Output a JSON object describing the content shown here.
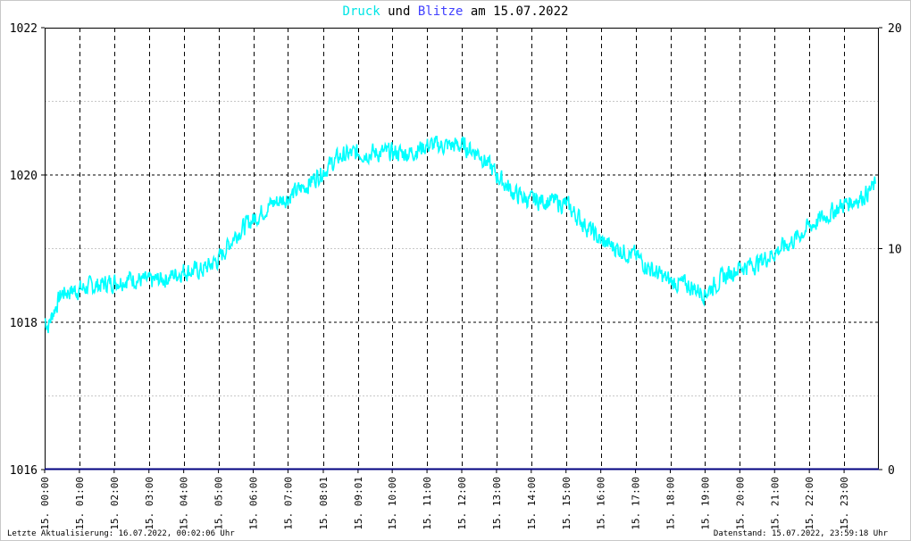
{
  "title": {
    "druck": "Druck",
    "und": "und",
    "blitze": "Blitze",
    "am": "am",
    "date": "15.07.2022"
  },
  "footer": {
    "left": "Letzte Aktualisierung: 16.07.2022, 00:02:06 Uhr",
    "right": "Datenstand: 15.07.2022, 23:59:18 Uhr"
  },
  "colors": {
    "pressure": "#00ffff",
    "lightning": "#000080",
    "grid": "#000000",
    "minor_grid": "#c8c8c8"
  },
  "chart_data": {
    "type": "line",
    "x_range_hours": [
      0,
      24
    ],
    "x_tick_labels": [
      "15. 00:00",
      "15. 01:00",
      "15. 02:00",
      "15. 03:00",
      "15. 04:00",
      "15. 05:00",
      "15. 06:00",
      "15. 07:00",
      "15. 08:01",
      "15. 09:01",
      "15. 10:00",
      "15. 11:00",
      "15. 12:00",
      "15. 13:00",
      "15. 14:00",
      "15. 15:00",
      "15. 16:00",
      "15. 17:00",
      "15. 18:00",
      "15. 19:00",
      "15. 20:00",
      "15. 21:00",
      "15. 22:00",
      "15. 23:00"
    ],
    "x_tick_hours": [
      0,
      1,
      2,
      3,
      4,
      5,
      6,
      7,
      8.0167,
      9.0167,
      10,
      11,
      12,
      13,
      14,
      15,
      16,
      17,
      18,
      19,
      20,
      21,
      22,
      23
    ],
    "y_left_range": [
      1016,
      1022
    ],
    "y_left_ticks": [
      "1016",
      "1018",
      "1020",
      "1022"
    ],
    "y_right_range": [
      0,
      20
    ],
    "y_right_ticks": [
      "0",
      "10",
      "20"
    ],
    "series": [
      {
        "name": "Druck",
        "axis": "left",
        "x_hours": [
          0,
          0.1,
          0.3,
          0.5,
          1,
          1.5,
          2,
          2.5,
          3,
          3.5,
          4,
          4.5,
          5,
          5.5,
          6,
          6.5,
          7,
          7.5,
          8,
          8.5,
          9,
          9.5,
          10,
          10.5,
          11,
          11.5,
          12,
          12.5,
          13,
          13.5,
          14,
          14.5,
          15,
          15.5,
          16,
          16.5,
          17,
          17.5,
          18,
          18.5,
          19,
          19.5,
          20,
          20.5,
          21,
          21.5,
          22,
          22.5,
          23,
          23.5,
          23.9
        ],
        "values": [
          1018.05,
          1017.95,
          1018.2,
          1018.4,
          1018.45,
          1018.5,
          1018.55,
          1018.6,
          1018.55,
          1018.6,
          1018.7,
          1018.7,
          1018.85,
          1019.2,
          1019.4,
          1019.6,
          1019.7,
          1019.85,
          1020.05,
          1020.25,
          1020.3,
          1020.3,
          1020.3,
          1020.3,
          1020.4,
          1020.4,
          1020.4,
          1020.3,
          1020.0,
          1019.75,
          1019.65,
          1019.65,
          1019.6,
          1019.35,
          1019.1,
          1019.0,
          1018.9,
          1018.7,
          1018.55,
          1018.5,
          1018.4,
          1018.6,
          1018.75,
          1018.8,
          1018.95,
          1019.1,
          1019.3,
          1019.45,
          1019.6,
          1019.7,
          1019.85
        ]
      },
      {
        "name": "Blitze",
        "axis": "right",
        "x_hours": [
          0,
          24
        ],
        "values": [
          0,
          0
        ]
      }
    ]
  }
}
